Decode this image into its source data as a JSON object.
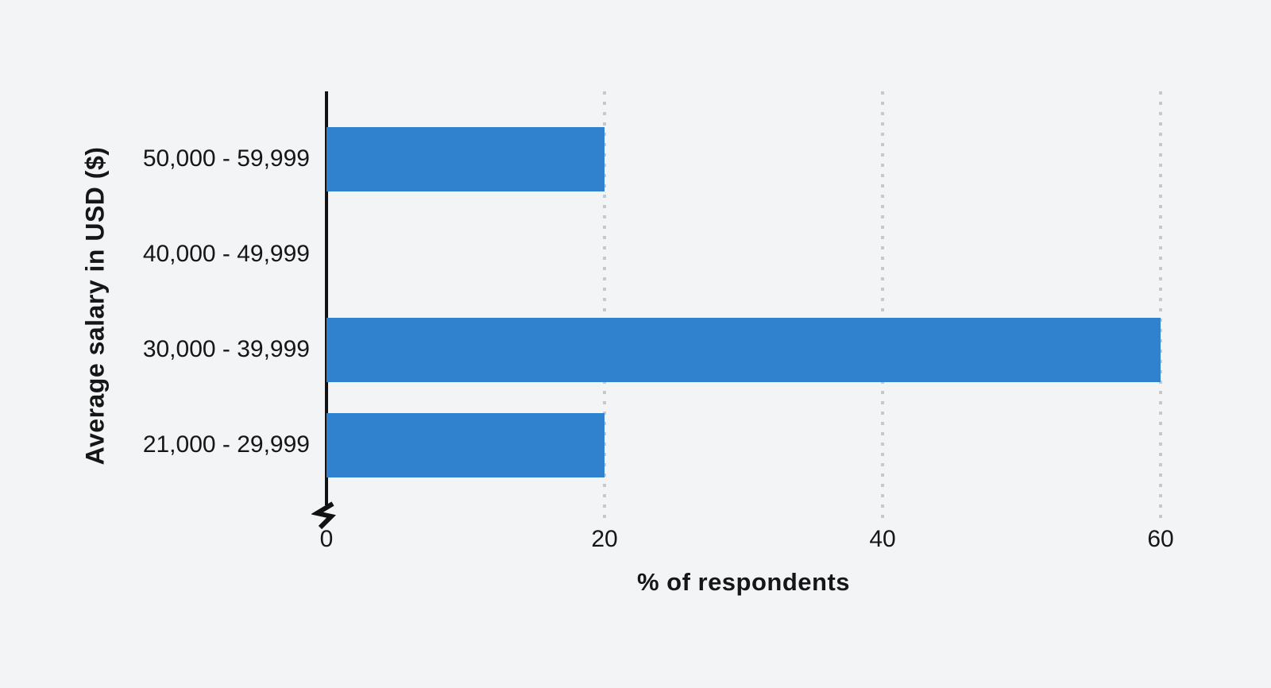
{
  "page": {
    "background": "#f3f4f6",
    "text_color": "#161616"
  },
  "chart_data": {
    "type": "bar",
    "orientation": "horizontal",
    "categories": [
      "50,000 - 59,999",
      "40,000 - 49,999",
      "30,000 - 39,999",
      "21,000 - 29,999"
    ],
    "values": [
      20,
      0,
      60,
      20
    ],
    "xlabel": "% of respondents",
    "ylabel": "Average salary in USD ($)",
    "xlim": [
      0,
      60
    ],
    "xticks": [
      0,
      20,
      40,
      60
    ],
    "grid": "vertical dotted gridlines at 20, 40, 60",
    "axis_break_at_zero": true,
    "legend": "none",
    "bar_color": "#3082ce",
    "axis_color": "#121212",
    "gridline_color": "#c8c8cb"
  }
}
